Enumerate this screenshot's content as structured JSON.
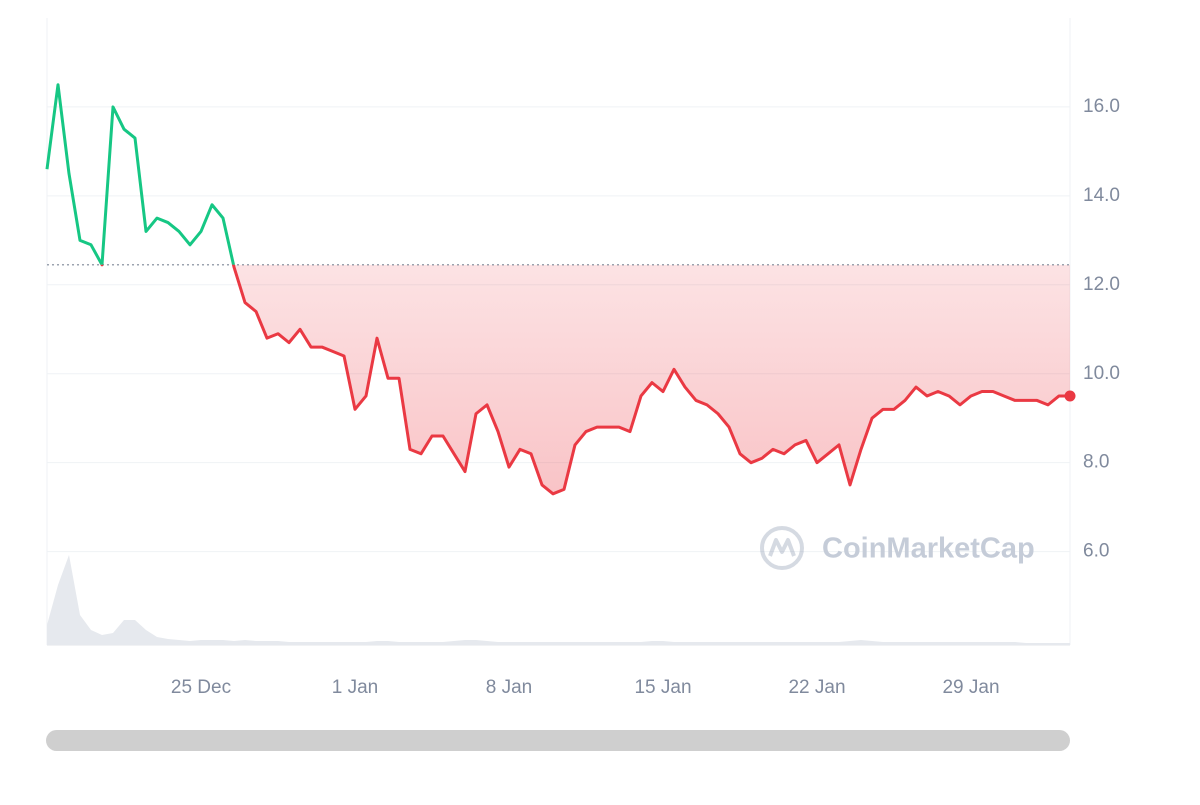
{
  "chart_data": {
    "type": "line",
    "categories": [
      null,
      null,
      null,
      null,
      null,
      null,
      null,
      null,
      null,
      null,
      null,
      null,
      null,
      null,
      "25 Dec",
      null,
      null,
      null,
      null,
      null,
      null,
      null,
      null,
      null,
      null,
      null,
      null,
      null,
      "1 Jan",
      null,
      null,
      null,
      null,
      null,
      null,
      null,
      null,
      null,
      null,
      null,
      null,
      null,
      "8 Jan",
      null,
      null,
      null,
      null,
      null,
      null,
      null,
      null,
      null,
      null,
      null,
      null,
      null,
      "15 Jan",
      null,
      null,
      null,
      null,
      null,
      null,
      null,
      null,
      null,
      null,
      null,
      null,
      null,
      "22 Jan",
      null,
      null,
      null,
      null,
      null,
      null,
      null,
      null,
      null,
      null,
      null,
      null,
      null,
      "29 Jan",
      null,
      null,
      null,
      null,
      null,
      null,
      null,
      null,
      null
    ],
    "values": [
      14.6,
      16.5,
      14.5,
      13.0,
      12.9,
      12.45,
      16.0,
      15.5,
      15.3,
      13.2,
      13.5,
      13.4,
      13.2,
      12.9,
      13.2,
      13.8,
      13.5,
      12.4,
      11.6,
      11.4,
      10.8,
      10.9,
      10.7,
      11.0,
      10.6,
      10.6,
      10.5,
      10.4,
      9.2,
      9.5,
      10.8,
      9.9,
      9.9,
      8.3,
      8.2,
      8.6,
      8.6,
      8.2,
      7.8,
      9.1,
      9.3,
      8.7,
      7.9,
      8.3,
      8.2,
      7.5,
      7.3,
      7.4,
      8.4,
      8.7,
      8.8,
      8.8,
      8.8,
      8.7,
      9.5,
      9.8,
      9.6,
      10.1,
      9.7,
      9.4,
      9.3,
      9.1,
      8.8,
      8.2,
      8.0,
      8.1,
      8.3,
      8.2,
      8.4,
      8.5,
      8.0,
      8.2,
      8.4,
      7.5,
      8.3,
      9.0,
      9.2,
      9.2,
      9.4,
      9.7,
      9.5,
      9.6,
      9.5,
      9.3,
      9.5,
      9.6,
      9.6,
      9.5,
      9.4,
      9.4,
      9.4,
      9.3,
      9.5,
      9.5
    ],
    "volume": [
      20,
      60,
      90,
      30,
      15,
      10,
      12,
      25,
      25,
      15,
      8,
      6,
      5,
      4,
      5,
      5,
      5,
      4,
      5,
      4,
      4,
      4,
      3,
      3,
      3,
      3,
      3,
      3,
      3,
      3,
      4,
      4,
      3,
      3,
      3,
      3,
      3,
      4,
      5,
      5,
      4,
      3,
      3,
      3,
      3,
      3,
      3,
      3,
      3,
      3,
      3,
      3,
      3,
      3,
      3,
      4,
      4,
      3,
      3,
      3,
      3,
      3,
      3,
      3,
      3,
      3,
      3,
      3,
      3,
      3,
      3,
      3,
      3,
      4,
      5,
      4,
      3,
      3,
      3,
      3,
      3,
      3,
      3,
      3,
      3,
      3,
      3,
      3,
      3,
      2,
      2,
      2,
      2,
      2
    ],
    "baseline": 12.45,
    "color_up": "#16c784",
    "color_down": "#ea3943",
    "volume_color": "#e6e9ee",
    "ylim": [
      3.9,
      18.0
    ],
    "yticks": [
      {
        "value": 6,
        "label": "6.0"
      },
      {
        "value": 8,
        "label": "8.0"
      },
      {
        "value": 10,
        "label": "10.0"
      },
      {
        "value": 12,
        "label": "12.0"
      },
      {
        "value": 14,
        "label": "14.0"
      },
      {
        "value": 16,
        "label": "16.0"
      }
    ],
    "grid": true,
    "watermark": "CoinMarketCap"
  }
}
